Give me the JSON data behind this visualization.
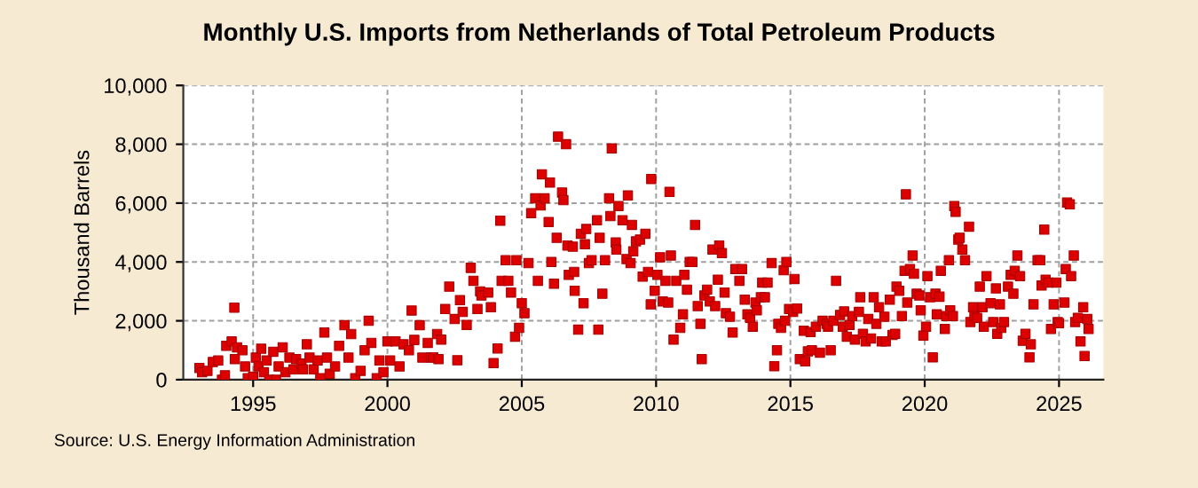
{
  "chart_data": {
    "type": "scatter",
    "title": "Monthly U.S. Imports from Netherlands of Total Petroleum Products",
    "ylabel": "Thousand Barrels",
    "annotations": [
      "Source: U.S. Energy Information Administration"
    ],
    "marker": "square",
    "grid": true,
    "xlim": [
      1992.4,
      2026.65
    ],
    "ylim": [
      0,
      10000
    ],
    "xticks": [
      1995,
      2000,
      2005,
      2010,
      2015,
      2020,
      2025
    ],
    "yticks": [
      0,
      {
        "value": 2000,
        "label": "2,000"
      },
      {
        "value": 4000,
        "label": "4,000"
      },
      {
        "value": 6000,
        "label": "6,000"
      },
      {
        "value": 8000,
        "label": "8,000"
      },
      {
        "value": 10000,
        "label": "10,000"
      }
    ],
    "series": [
      {
        "color": "#dd0000",
        "x": [
          1993.0,
          1993.1,
          1993.3,
          1993.5,
          1993.7,
          1993.84,
          1993.95,
          1994.0,
          1994.2,
          1994.3,
          1994.32,
          1994.4,
          1994.6,
          1994.7,
          1994.8,
          1995.0,
          1995.1,
          1995.2,
          1995.3,
          1995.4,
          1995.5,
          1995.6,
          1995.75,
          1995.85,
          1995.95,
          1996.1,
          1996.2,
          1996.35,
          1996.5,
          1996.6,
          1996.8,
          1996.85,
          1997.0,
          1997.1,
          1997.25,
          1997.4,
          1997.5,
          1997.65,
          1997.75,
          1997.85,
          1998.05,
          1998.2,
          1998.4,
          1998.55,
          1998.65,
          1998.8,
          1999.0,
          1999.15,
          1999.3,
          1999.4,
          1999.6,
          1999.7,
          1999.85,
          2000.0,
          2000.1,
          2000.3,
          2000.45,
          2000.6,
          2000.8,
          2000.9,
          2001.0,
          2001.2,
          2001.3,
          2001.5,
          2001.62,
          2001.7,
          2001.85,
          2001.9,
          2002.0,
          2002.15,
          2002.3,
          2002.5,
          2002.6,
          2002.7,
          2002.8,
          2002.95,
          2003.1,
          2003.2,
          2003.35,
          2003.45,
          2003.5,
          2003.75,
          2003.85,
          2003.95,
          2004.1,
          2004.2,
          2004.25,
          2004.4,
          2004.5,
          2004.6,
          2004.75,
          2004.8,
          2004.9,
          2005.0,
          2005.1,
          2005.25,
          2005.35,
          2005.5,
          2005.6,
          2005.7,
          2005.75,
          2005.85,
          2006.0,
          2006.05,
          2006.1,
          2006.2,
          2006.3,
          2006.35,
          2006.5,
          2006.55,
          2006.65,
          2006.7,
          2006.75,
          2006.9,
          2006.95,
          2006.97,
          2007.1,
          2007.2,
          2007.3,
          2007.35,
          2007.4,
          2007.5,
          2007.6,
          2007.8,
          2007.85,
          2007.9,
          2008.0,
          2008.1,
          2008.25,
          2008.3,
          2008.35,
          2008.5,
          2008.52,
          2008.6,
          2008.75,
          2008.9,
          2008.95,
          2009.05,
          2009.1,
          2009.15,
          2009.25,
          2009.4,
          2009.5,
          2009.6,
          2009.7,
          2009.8,
          2009.82,
          2009.95,
          2010.05,
          2010.15,
          2010.25,
          2010.35,
          2010.45,
          2010.5,
          2010.55,
          2010.65,
          2010.75,
          2010.9,
          2011.0,
          2011.05,
          2011.15,
          2011.25,
          2011.35,
          2011.45,
          2011.55,
          2011.65,
          2011.7,
          2011.8,
          2011.9,
          2012.0,
          2012.1,
          2012.2,
          2012.3,
          2012.35,
          2012.45,
          2012.55,
          2012.6,
          2012.75,
          2012.85,
          2012.95,
          2013.1,
          2013.2,
          2013.3,
          2013.4,
          2013.5,
          2013.6,
          2013.7,
          2013.75,
          2013.9,
          2013.95,
          2014.05,
          2014.15,
          2014.3,
          2014.4,
          2014.5,
          2014.55,
          2014.65,
          2014.75,
          2014.8,
          2014.85,
          2014.95,
          2015.1,
          2015.15,
          2015.25,
          2015.35,
          2015.5,
          2015.55,
          2015.65,
          2015.75,
          2015.8,
          2015.95,
          2016.1,
          2016.2,
          2016.35,
          2016.4,
          2016.5,
          2016.6,
          2016.7,
          2016.85,
          2016.95,
          2017.0,
          2017.1,
          2017.2,
          2017.3,
          2017.4,
          2017.55,
          2017.6,
          2017.7,
          2017.8,
          2017.9,
          2018.0,
          2018.1,
          2018.2,
          2018.3,
          2018.4,
          2018.5,
          2018.55,
          2018.7,
          2018.8,
          2018.9,
          2018.95,
          2019.05,
          2019.15,
          2019.25,
          2019.3,
          2019.35,
          2019.45,
          2019.55,
          2019.6,
          2019.7,
          2019.8,
          2019.85,
          2019.95,
          2020.05,
          2020.1,
          2020.2,
          2020.3,
          2020.4,
          2020.45,
          2020.55,
          2020.6,
          2020.75,
          2020.8,
          2020.9,
          2020.95,
          2021.05,
          2021.1,
          2021.15,
          2021.25,
          2021.3,
          2021.4,
          2021.5,
          2021.65,
          2021.7,
          2021.8,
          2021.85,
          2021.95,
          2022.05,
          2022.15,
          2022.2,
          2022.3,
          2022.45,
          2022.55,
          2022.65,
          2022.7,
          2022.8,
          2022.85,
          2022.95,
          2023.1,
          2023.2,
          2023.3,
          2023.35,
          2023.45,
          2023.55,
          2023.65,
          2023.75,
          2023.9,
          2023.95,
          2024.05,
          2024.2,
          2024.3,
          2024.35,
          2024.45,
          2024.5,
          2024.6,
          2024.7,
          2024.8,
          2024.9,
          2024.95,
          2025.0,
          2025.2,
          2025.25,
          2025.3,
          2025.4,
          2025.45,
          2025.55,
          2025.6,
          2025.7,
          2025.8,
          2025.9,
          2025.95,
          2026.05,
          2026.1
        ],
        "values": [
          400,
          250,
          300,
          600,
          650,
          0,
          150,
          1150,
          1300,
          2450,
          700,
          1100,
          1000,
          450,
          50,
          100,
          750,
          450,
          1050,
          250,
          650,
          0,
          950,
          0,
          450,
          1100,
          250,
          750,
          350,
          700,
          550,
          350,
          1200,
          750,
          350,
          650,
          50,
          1600,
          750,
          200,
          450,
          1150,
          1850,
          750,
          1550,
          50,
          300,
          1000,
          2000,
          1250,
          50,
          650,
          250,
          1300,
          650,
          1300,
          450,
          1200,
          1000,
          2350,
          1350,
          1850,
          750,
          1250,
          750,
          760,
          1550,
          700,
          1360,
          2400,
          3160,
          2060,
          660,
          2700,
          2300,
          1860,
          3800,
          3360,
          2400,
          3000,
          2860,
          2960,
          2460,
          560,
          1060,
          5400,
          3360,
          4060,
          3360,
          2960,
          1460,
          4060,
          1760,
          2600,
          2260,
          3960,
          5660,
          6160,
          3360,
          5920,
          6980,
          6160,
          5360,
          6700,
          4000,
          3260,
          4820,
          8260,
          6360,
          6100,
          8000,
          4560,
          3560,
          4520,
          3660,
          3020,
          1700,
          4960,
          2600,
          4600,
          5120,
          3960,
          4060,
          5420,
          1700,
          4820,
          2920,
          4060,
          6160,
          5560,
          7860,
          4660,
          4420,
          5900,
          5420,
          4100,
          6260,
          3960,
          5260,
          4360,
          4700,
          4760,
          3500,
          4960,
          3660,
          2560,
          6820,
          3020,
          3560,
          4160,
          2660,
          3360,
          2620,
          6380,
          4220,
          1360,
          3360,
          1760,
          2220,
          3560,
          3060,
          4000,
          4000,
          5260,
          2500,
          1900,
          700,
          2860,
          3060,
          2660,
          4420,
          2500,
          3400,
          4560,
          4300,
          2960,
          2260,
          2140,
          1600,
          3760,
          3360,
          3760,
          2720,
          2220,
          2100,
          1800,
          2620,
          2360,
          2800,
          3300,
          2800,
          3300,
          3960,
          460,
          1000,
          1900,
          1760,
          3720,
          2000,
          4000,
          2400,
          2300,
          3420,
          2420,
          700,
          1660,
          620,
          960,
          1620,
          1000,
          1800,
          920,
          2000,
          1900,
          1800,
          1000,
          2000,
          3360,
          2200,
          1800,
          2320,
          1460,
          1860,
          2160,
          1360,
          2300,
          2800,
          1560,
          1300,
          2060,
          1400,
          2800,
          1900,
          2460,
          1300,
          2140,
          1300,
          2720,
          1520,
          1560,
          3160,
          3020,
          2160,
          3700,
          6300,
          2620,
          3760,
          4220,
          3600,
          2920,
          2860,
          2360,
          1500,
          1800,
          3520,
          2800,
          760,
          2920,
          2220,
          2820,
          3700,
          1720,
          2160,
          4060,
          2360,
          2160,
          5900,
          5700,
          4760,
          4820,
          4420,
          4060,
          5200,
          1960,
          2460,
          2160,
          2100,
          3160,
          2460,
          1800,
          3520,
          2600,
          1960,
          3100,
          1560,
          2560,
          1760,
          1960,
          3160,
          3560,
          2920,
          3700,
          4220,
          3520,
          1320,
          1560,
          760,
          1200,
          2560,
          4060,
          4060,
          3200,
          5100,
          3400,
          3300,
          1720,
          2560,
          3300,
          1960,
          1920,
          2620,
          3760,
          6020,
          5960,
          3520,
          4220,
          1960,
          2100,
          1300,
          2460,
          800,
          2060,
          1720
        ]
      }
    ]
  }
}
